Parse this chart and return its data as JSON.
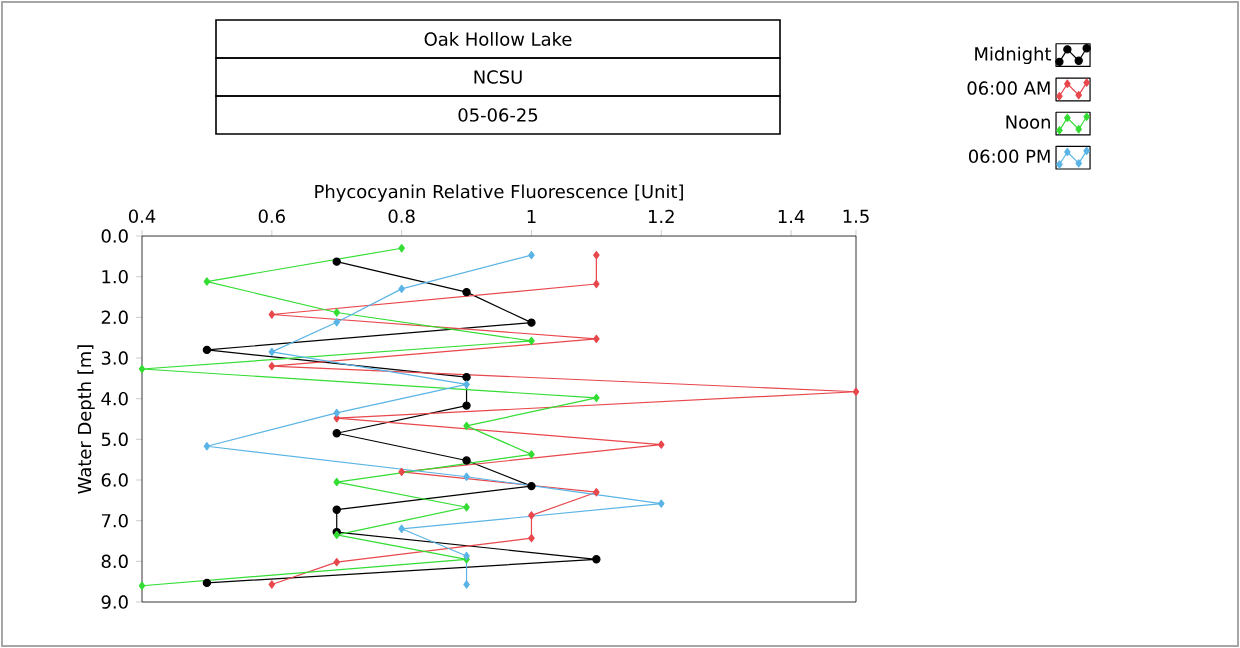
{
  "chart_data": {
    "type": "line",
    "title": "Oak Hollow Lake",
    "subtitle": "NCSU",
    "annotations": [
      "05-06-25"
    ],
    "xlabel": "Phycocyanin Relative Fluorescence [Unit]",
    "ylabel": "Water Depth [m]",
    "xlim": [
      0.4,
      1.5
    ],
    "xticks": [
      0.4,
      0.6,
      0.8,
      1,
      1.2,
      1.4,
      1.5
    ],
    "ylim": [
      9,
      0
    ],
    "yticks": [
      {
        "value": 0,
        "label": "0.0"
      },
      {
        "value": 1,
        "label": "1.0"
      },
      {
        "value": 2,
        "label": "2.0"
      },
      {
        "value": 3,
        "label": "3.0"
      },
      {
        "value": 4,
        "label": "4.0"
      },
      {
        "value": 5,
        "label": "5.0"
      },
      {
        "value": 6,
        "label": "6.0"
      },
      {
        "value": 7,
        "label": "7.0"
      },
      {
        "value": 8,
        "label": "8.0"
      },
      {
        "value": 9,
        "label": "9.0"
      }
    ],
    "legend": "top right",
    "series": [
      {
        "name": "Midnight",
        "color": "#000000",
        "marker": "circle",
        "x": [
          0.7,
          0.9,
          1.0,
          0.5,
          0.9,
          0.9,
          0.7,
          0.9,
          1.0,
          0.7,
          0.7,
          1.1,
          0.5
        ],
        "values": [
          0.63,
          1.38,
          2.13,
          2.8,
          3.47,
          4.17,
          4.85,
          5.52,
          6.15,
          6.73,
          7.28,
          7.95,
          8.53
        ]
      },
      {
        "name": "06:00 AM",
        "color": "#e8474c",
        "marker": "diamond",
        "x": [
          1.1,
          1.1,
          0.6,
          1.1,
          0.6,
          1.5,
          0.7,
          1.2,
          0.8,
          1.1,
          1.0,
          1.0,
          0.7,
          0.6
        ],
        "values": [
          0.47,
          1.18,
          1.93,
          2.53,
          3.2,
          3.83,
          4.48,
          5.13,
          5.8,
          6.3,
          6.87,
          7.43,
          8.02,
          8.57
        ]
      },
      {
        "name": "Noon",
        "color": "#33dd33",
        "marker": "diamond",
        "x": [
          0.8,
          0.5,
          0.7,
          1.0,
          0.4,
          1.1,
          0.9,
          1.0,
          0.7,
          0.9,
          0.7,
          0.9,
          0.4
        ],
        "values": [
          0.3,
          1.12,
          1.88,
          2.58,
          3.27,
          3.98,
          4.67,
          5.37,
          6.05,
          6.67,
          7.35,
          7.95,
          8.6
        ]
      },
      {
        "name": "06:00 PM",
        "color": "#5ab4e5",
        "marker": "diamond",
        "x": [
          1.0,
          0.8,
          0.7,
          0.6,
          0.9,
          0.7,
          0.5,
          0.9,
          1.2,
          0.8,
          0.9,
          0.9
        ],
        "values": [
          0.47,
          1.3,
          2.12,
          2.85,
          3.65,
          4.35,
          5.17,
          5.92,
          6.58,
          7.2,
          7.87,
          8.57
        ]
      }
    ]
  }
}
